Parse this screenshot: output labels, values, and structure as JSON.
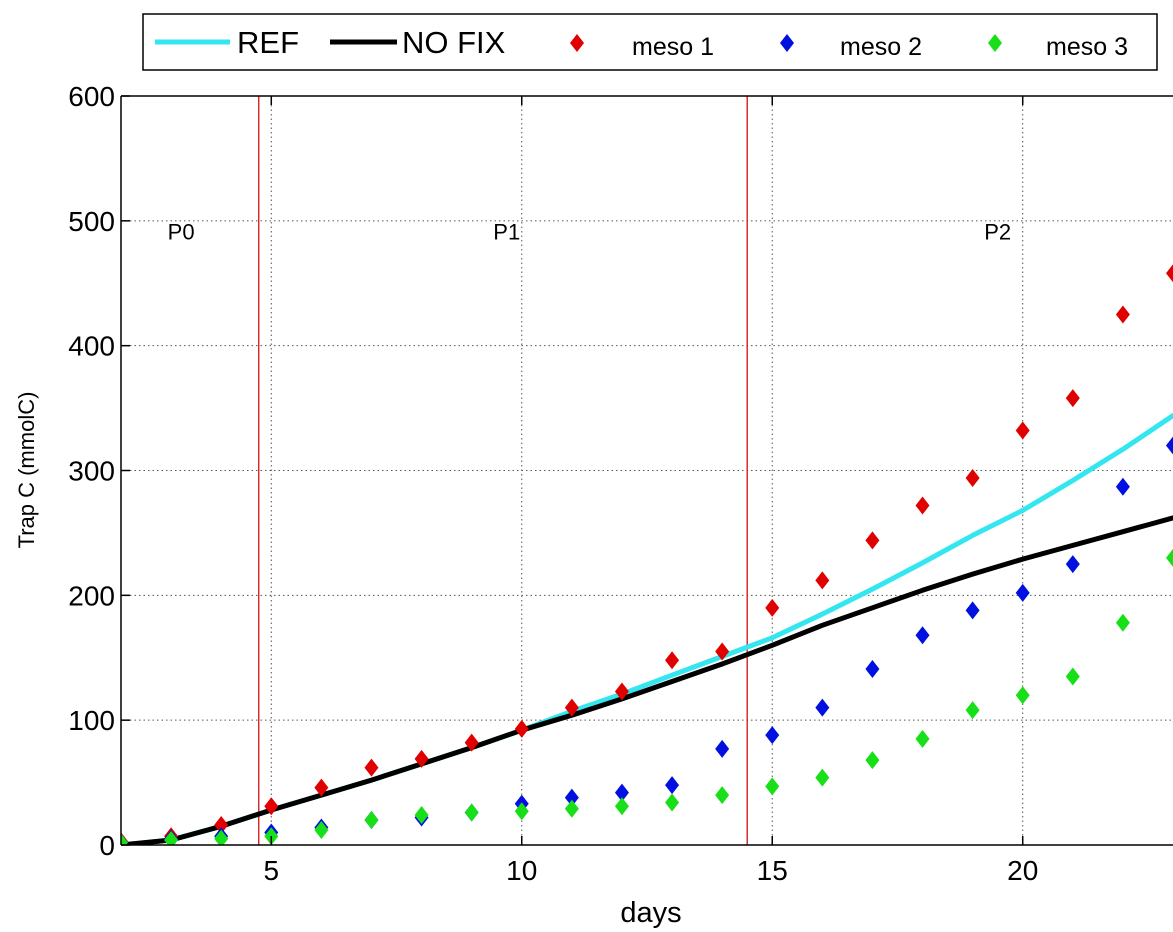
{
  "chart_data": {
    "type": "line",
    "title": "",
    "xlabel": "days",
    "ylabel": "Trap C (mmolC)",
    "xlim": [
      2,
      23
    ],
    "ylim": [
      0,
      600
    ],
    "x_ticks": [
      5,
      10,
      15,
      20
    ],
    "y_ticks": [
      0,
      100,
      200,
      300,
      400,
      500,
      600
    ],
    "grid": true,
    "legend_position": "top",
    "phase_boundaries": [
      4.75,
      14.5
    ],
    "phase_labels": [
      {
        "text": "P0",
        "x": 3.2,
        "y": 485
      },
      {
        "text": "P1",
        "x": 9.7,
        "y": 485
      },
      {
        "text": "P2",
        "x": 19.5,
        "y": 485
      }
    ],
    "series": [
      {
        "name": "REF",
        "kind": "line",
        "color": "#33e6f0",
        "x": [
          2,
          3,
          4,
          5,
          6,
          7,
          8,
          9,
          10,
          11,
          12,
          13,
          14,
          15,
          16,
          17,
          18,
          19,
          20,
          21,
          22,
          23
        ],
        "y": [
          0,
          4,
          15,
          28,
          40,
          52,
          65,
          78,
          92,
          107,
          121,
          136,
          151,
          166,
          185,
          205,
          226,
          248,
          268,
          292,
          317,
          344
        ]
      },
      {
        "name": "NO FIX",
        "kind": "line",
        "color": "#000000",
        "x": [
          2,
          3,
          4,
          5,
          6,
          7,
          8,
          9,
          10,
          11,
          12,
          13,
          14,
          15,
          16,
          17,
          18,
          19,
          20,
          21,
          22,
          23
        ],
        "y": [
          0,
          4,
          15,
          28,
          40,
          52,
          65,
          78,
          92,
          104,
          117,
          131,
          145,
          160,
          176,
          190,
          204,
          217,
          229,
          240,
          251,
          262
        ]
      },
      {
        "name": "meso 1",
        "kind": "marker",
        "color": "#e00000",
        "x": [
          2,
          3,
          4,
          5,
          6,
          7,
          8,
          9,
          10,
          11,
          12,
          13,
          14,
          15,
          16,
          17,
          18,
          19,
          20,
          21,
          22,
          23
        ],
        "y": [
          3,
          7,
          16,
          31,
          46,
          62,
          69,
          82,
          93,
          110,
          123,
          148,
          155,
          190,
          212,
          244,
          272,
          294,
          332,
          358,
          425,
          458
        ]
      },
      {
        "name": "meso 2",
        "kind": "marker",
        "color": "#0010e0",
        "x": [
          2,
          3,
          4,
          5,
          6,
          7,
          8,
          9,
          10,
          11,
          12,
          13,
          14,
          15,
          16,
          17,
          18,
          19,
          20,
          21,
          22,
          23
        ],
        "y": [
          2,
          5,
          7,
          10,
          14,
          20,
          22,
          26,
          33,
          38,
          42,
          48,
          77,
          88,
          110,
          141,
          168,
          188,
          202,
          225,
          287,
          320
        ]
      },
      {
        "name": "meso 3",
        "kind": "marker",
        "color": "#18e018",
        "x": [
          2,
          3,
          4,
          5,
          6,
          7,
          8,
          9,
          10,
          11,
          12,
          13,
          14,
          15,
          16,
          17,
          18,
          19,
          20,
          21,
          22,
          23
        ],
        "y": [
          2,
          4,
          5,
          7,
          12,
          20,
          24,
          26,
          27,
          29,
          31,
          34,
          40,
          47,
          54,
          68,
          85,
          108,
          120,
          135,
          178,
          230
        ]
      }
    ]
  }
}
